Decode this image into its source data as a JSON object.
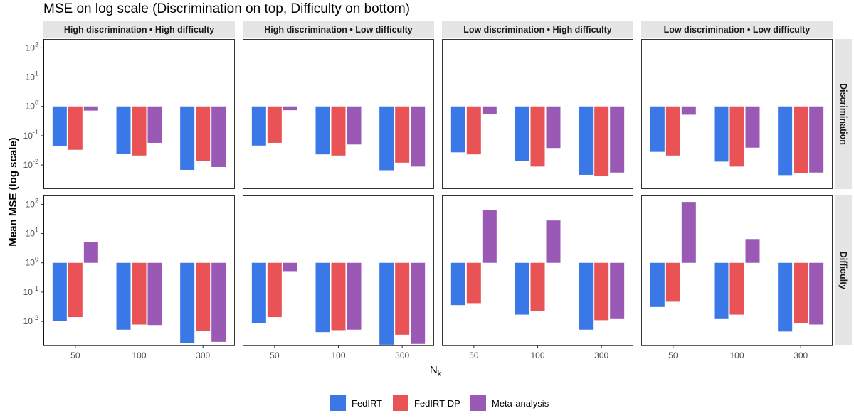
{
  "chart_data": {
    "type": "bar",
    "title": "MSE on log scale (Discrimination on top, Difficulty on bottom)",
    "ylabel": "Mean MSE (log scale)",
    "xlabel_main": "N",
    "xlabel_sub": "k",
    "y_scale": "log10",
    "ylim": [
      0.0015,
      200
    ],
    "y_ticks": [
      {
        "value": 0.01,
        "base": "10",
        "exp": "-2"
      },
      {
        "value": 0.1,
        "base": "10",
        "exp": "-1"
      },
      {
        "value": 1,
        "base": "10",
        "exp": "0"
      },
      {
        "value": 10,
        "base": "10",
        "exp": "1"
      },
      {
        "value": 100,
        "base": "10",
        "exp": "2"
      }
    ],
    "categories": [
      "50",
      "100",
      "300"
    ],
    "columns": [
      "High discrimination • High difficulty",
      "High discrimination • Low difficulty",
      "Low discrimination • High difficulty",
      "Low discrimination • Low difficulty"
    ],
    "rows": [
      "Discrimination",
      "Difficulty"
    ],
    "grid": false,
    "legend_position": "bottom",
    "series": [
      {
        "name": "FedIRT",
        "color": "#3B78E7"
      },
      {
        "name": "FedIRT-DP",
        "color": "#E95355"
      },
      {
        "name": "Meta-analysis",
        "color": "#9B59B6"
      }
    ],
    "panels": [
      {
        "row": "Discrimination",
        "column": "High discrimination • High difficulty",
        "values": [
          [
            0.043,
            0.024,
            0.0068
          ],
          [
            0.033,
            0.021,
            0.014
          ],
          [
            0.72,
            0.057,
            0.0085
          ]
        ]
      },
      {
        "row": "Discrimination",
        "column": "High discrimination • Low difficulty",
        "values": [
          [
            0.046,
            0.023,
            0.0066
          ],
          [
            0.057,
            0.021,
            0.012
          ],
          [
            0.74,
            0.05,
            0.0088
          ]
        ]
      },
      {
        "row": "Discrimination",
        "column": "Low discrimination • High difficulty",
        "values": [
          [
            0.027,
            0.014,
            0.0046
          ],
          [
            0.023,
            0.0088,
            0.0043
          ],
          [
            0.55,
            0.038,
            0.0055
          ]
        ]
      },
      {
        "row": "Discrimination",
        "column": "Low discrimination • Low difficulty",
        "values": [
          [
            0.028,
            0.013,
            0.0045
          ],
          [
            0.021,
            0.0088,
            0.0052
          ],
          [
            0.52,
            0.039,
            0.0055
          ]
        ]
      },
      {
        "row": "Difficulty",
        "column": "High discrimination • High difficulty",
        "values": [
          [
            0.0105,
            0.0052,
            0.0018
          ],
          [
            0.014,
            0.0078,
            0.0048
          ],
          [
            5.2,
            0.0075,
            0.002
          ]
        ]
      },
      {
        "row": "Difficulty",
        "column": "High discrimination • Low difficulty",
        "values": [
          [
            0.0085,
            0.0043,
            0.0016
          ],
          [
            0.014,
            0.005,
            0.0035
          ],
          [
            0.52,
            0.0052,
            0.0017
          ]
        ]
      },
      {
        "row": "Difficulty",
        "column": "Low discrimination • High difficulty",
        "values": [
          [
            0.036,
            0.017,
            0.0052
          ],
          [
            0.042,
            0.022,
            0.011
          ],
          [
            64,
            28,
            0.012
          ]
        ]
      },
      {
        "row": "Difficulty",
        "column": "Low discrimination • Low difficulty",
        "values": [
          [
            0.031,
            0.012,
            0.0045
          ],
          [
            0.047,
            0.017,
            0.0088
          ],
          [
            120,
            6.5,
            0.0078
          ]
        ]
      }
    ]
  }
}
